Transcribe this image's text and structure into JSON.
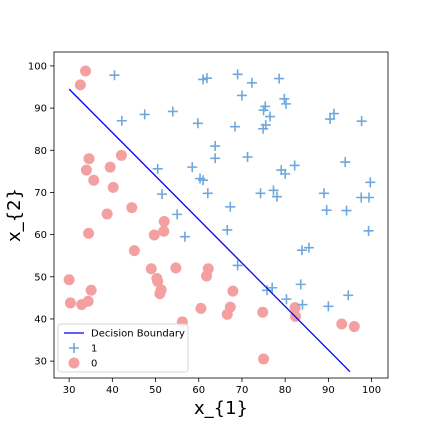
{
  "chart_data": {
    "type": "scatter",
    "title": "",
    "xlabel": "x_{1}",
    "ylabel": "x_{2}",
    "xlim": [
      26.5,
      103.8
    ],
    "ylim": [
      26.0,
      103.3
    ],
    "xticks": [
      30,
      40,
      50,
      60,
      70,
      80,
      90,
      100
    ],
    "yticks": [
      30,
      40,
      50,
      60,
      70,
      80,
      90,
      100
    ],
    "grid": false,
    "legend_position": "lower-left",
    "colors": {
      "positive": "#6fa8dc",
      "negative": "#f4a0a0",
      "boundary": "#0000ff"
    },
    "boundary": {
      "name": "Decision Boundary",
      "x": [
        30,
        95
      ],
      "y": [
        94.5,
        27.5
      ]
    },
    "series": [
      {
        "name": "1",
        "marker": "plus",
        "points": [
          [
            40.5,
            97.8
          ],
          [
            42.2,
            87.0
          ],
          [
            47.5,
            88.5
          ],
          [
            50.5,
            75.6
          ],
          [
            51.5,
            69.6
          ],
          [
            54.0,
            89.2
          ],
          [
            55.0,
            64.8
          ],
          [
            56.8,
            59.5
          ],
          [
            58.5,
            76.0
          ],
          [
            59.8,
            86.4
          ],
          [
            60.3,
            73.3
          ],
          [
            61.0,
            96.8
          ],
          [
            61.0,
            72.9
          ],
          [
            61.9,
            97.1
          ],
          [
            62.1,
            69.8
          ],
          [
            63.8,
            81.0
          ],
          [
            63.8,
            78.1
          ],
          [
            66.6,
            61.1
          ],
          [
            67.3,
            66.6
          ],
          [
            68.4,
            85.6
          ],
          [
            69.0,
            98.0
          ],
          [
            69.0,
            52.7
          ],
          [
            70.0,
            93.0
          ],
          [
            71.3,
            78.4
          ],
          [
            72.3,
            96.0
          ],
          [
            74.3,
            69.8
          ],
          [
            74.9,
            85.1
          ],
          [
            75.0,
            89.5
          ],
          [
            75.4,
            90.4
          ],
          [
            75.5,
            86.0
          ],
          [
            75.8,
            46.8
          ],
          [
            76.5,
            88.0
          ],
          [
            77.0,
            47.4
          ],
          [
            77.3,
            70.5
          ],
          [
            78.1,
            69.0
          ],
          [
            78.6,
            97.0
          ],
          [
            79.1,
            75.3
          ],
          [
            79.8,
            92.2
          ],
          [
            80.0,
            74.4
          ],
          [
            80.2,
            91.0
          ],
          [
            80.3,
            44.7
          ],
          [
            82.2,
            76.4
          ],
          [
            83.6,
            48.2
          ],
          [
            83.9,
            56.3
          ],
          [
            84.0,
            43.4
          ],
          [
            85.5,
            56.9
          ],
          [
            89.0,
            69.8
          ],
          [
            89.6,
            65.8
          ],
          [
            90.0,
            43.0
          ],
          [
            90.4,
            87.4
          ],
          [
            91.3,
            88.7
          ],
          [
            93.9,
            77.2
          ],
          [
            94.2,
            65.7
          ],
          [
            94.6,
            45.6
          ],
          [
            97.6,
            68.8
          ],
          [
            97.7,
            86.9
          ],
          [
            99.3,
            60.9
          ],
          [
            99.4,
            68.8
          ],
          [
            99.7,
            72.4
          ]
        ]
      },
      {
        "name": "0",
        "marker": "circle",
        "points": [
          [
            30.0,
            49.3
          ],
          [
            30.3,
            43.8
          ],
          [
            32.6,
            95.5
          ],
          [
            32.9,
            43.4
          ],
          [
            33.8,
            98.8
          ],
          [
            34.0,
            75.3
          ],
          [
            34.4,
            44.2
          ],
          [
            34.5,
            60.3
          ],
          [
            34.6,
            78.0
          ],
          [
            35.1,
            46.8
          ],
          [
            35.7,
            72.9
          ],
          [
            38.8,
            64.9
          ],
          [
            39.5,
            76.0
          ],
          [
            40.2,
            71.2
          ],
          [
            42.1,
            78.8
          ],
          [
            44.5,
            66.4
          ],
          [
            45.1,
            56.2
          ],
          [
            49.0,
            51.9
          ],
          [
            49.7,
            59.9
          ],
          [
            50.3,
            49.6
          ],
          [
            50.5,
            48.9
          ],
          [
            51.0,
            46.0
          ],
          [
            51.3,
            46.9
          ],
          [
            51.9,
            60.8
          ],
          [
            52.0,
            63.1
          ],
          [
            54.7,
            52.1
          ],
          [
            56.2,
            39.3
          ],
          [
            60.5,
            42.5
          ],
          [
            61.8,
            50.2
          ],
          [
            62.2,
            51.9
          ],
          [
            66.6,
            41.1
          ],
          [
            67.3,
            42.8
          ],
          [
            67.9,
            46.6
          ],
          [
            74.8,
            41.6
          ],
          [
            75.0,
            30.5
          ],
          [
            82.3,
            42.7
          ],
          [
            82.4,
            40.6
          ],
          [
            93.1,
            38.8
          ],
          [
            96.0,
            38.2
          ]
        ]
      }
    ]
  }
}
